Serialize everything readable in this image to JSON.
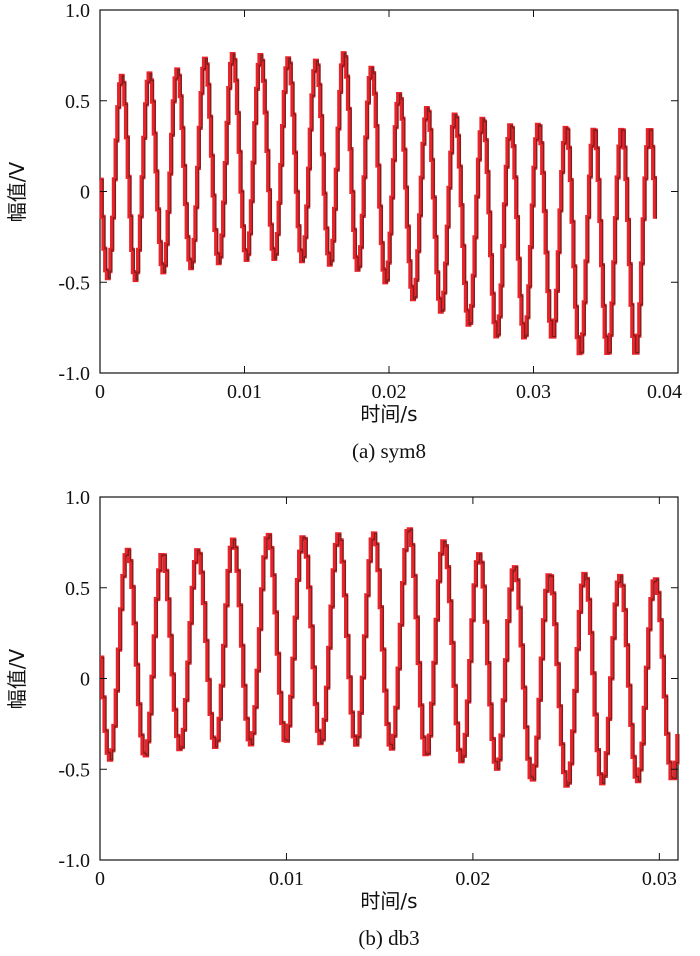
{
  "chart_data": [
    {
      "type": "line",
      "caption": "(a) sym8",
      "xlabel": "时间/s",
      "ylabel": "幅值/V",
      "xlim": [
        0,
        0.04
      ],
      "ylim": [
        -1.0,
        1.0
      ],
      "x_ticks": [
        "0",
        "0.01",
        "0.02",
        "0.03",
        "0.04"
      ],
      "y_ticks": [
        "1.0",
        "0.5",
        "0",
        "-0.5",
        "-1.0"
      ],
      "x_end": 0.0385,
      "frequency_hz": 520,
      "peaks": [
        0.6,
        0.65,
        0.65,
        0.68,
        0.75,
        0.76,
        0.75,
        0.73,
        0.72,
        0.78,
        0.65,
        0.5,
        0.45,
        0.42,
        0.4,
        0.36,
        0.38,
        0.35
      ],
      "troughs": [
        -0.47,
        -0.5,
        -0.45,
        -0.43,
        -0.4,
        -0.38,
        -0.37,
        -0.38,
        -0.4,
        -0.42,
        -0.48,
        -0.58,
        -0.65,
        -0.72,
        -0.8,
        -0.82,
        -0.78,
        -0.9
      ],
      "series_colors": [
        "#e8242a",
        "#7a1e1e"
      ]
    },
    {
      "type": "line",
      "caption": "(b) db3",
      "xlabel": "时间/s",
      "ylabel": "幅值/V",
      "xlim": [
        0,
        0.031
      ],
      "ylim": [
        -1.0,
        1.0
      ],
      "x_ticks": [
        "0",
        "0.01",
        "0.02",
        "0.03"
      ],
      "y_ticks": [
        "1.0",
        "0.5",
        "0",
        "-0.5",
        "-1.0"
      ],
      "x_end": 0.031,
      "frequency_hz": 530,
      "peaks": [
        0.68,
        0.72,
        0.68,
        0.72,
        0.78,
        0.8,
        0.78,
        0.8,
        0.8,
        0.84,
        0.73,
        0.67,
        0.6,
        0.57,
        0.58,
        0.56,
        0.55
      ],
      "troughs": [
        -0.45,
        -0.44,
        -0.4,
        -0.38,
        -0.37,
        -0.35,
        -0.36,
        -0.36,
        -0.38,
        -0.42,
        -0.45,
        -0.48,
        -0.55,
        -0.6,
        -0.58,
        -0.57,
        -0.56
      ],
      "series_colors": [
        "#e8242a",
        "#7a1e1e"
      ]
    }
  ]
}
